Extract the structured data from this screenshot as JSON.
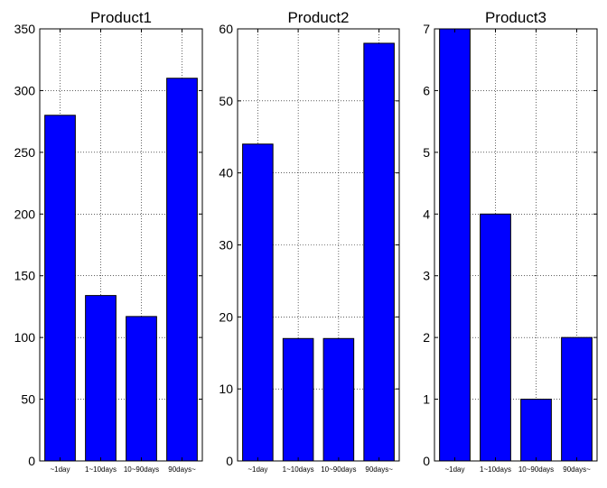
{
  "chart_data": [
    {
      "type": "bar",
      "title": "Product1",
      "categories": [
        "~1day",
        "1~10days",
        "10~90days",
        "90days~"
      ],
      "values": [
        280,
        134,
        117,
        310
      ],
      "ylim": [
        0,
        350
      ],
      "yticks": [
        0,
        50,
        100,
        150,
        200,
        250,
        300,
        350
      ],
      "grid": true,
      "bar_color": "#0000ff"
    },
    {
      "type": "bar",
      "title": "Product2",
      "categories": [
        "~1day",
        "1~10days",
        "10~90days",
        "90days~"
      ],
      "values": [
        44,
        17,
        17,
        58
      ],
      "ylim": [
        0,
        60
      ],
      "yticks": [
        0,
        10,
        20,
        30,
        40,
        50,
        60
      ],
      "grid": true,
      "bar_color": "#0000ff"
    },
    {
      "type": "bar",
      "title": "Product3",
      "categories": [
        "~1day",
        "1~10days",
        "10~90days",
        "90days~"
      ],
      "values": [
        7,
        4,
        1,
        2
      ],
      "ylim": [
        0,
        7
      ],
      "yticks": [
        0,
        1,
        2,
        3,
        4,
        5,
        6,
        7
      ],
      "grid": true,
      "bar_color": "#0000ff"
    }
  ]
}
